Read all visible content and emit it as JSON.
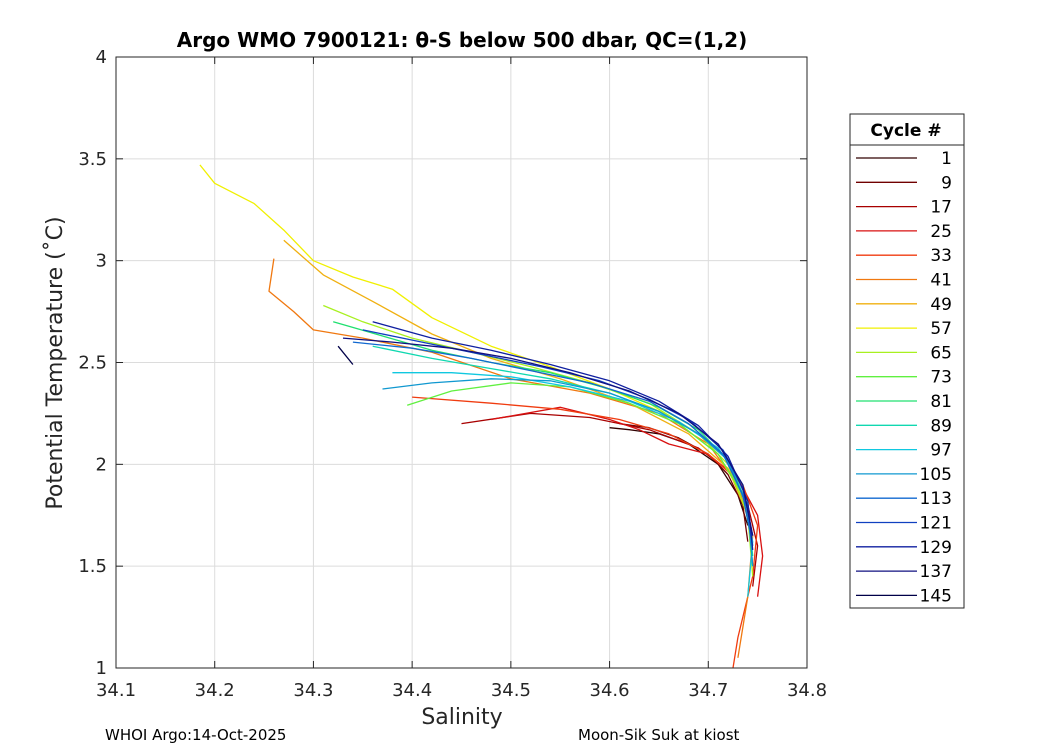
{
  "chart_data": {
    "type": "line",
    "title": "Argo WMO 7900121: θ-S below 500 dbar,  QC=(1,2)",
    "xlabel": "Salinity",
    "ylabel": "Potential Temperature (˚C)",
    "xlim": [
      34.1,
      34.8
    ],
    "ylim": [
      1,
      4
    ],
    "xticks": [
      34.1,
      34.2,
      34.3,
      34.4,
      34.5,
      34.6,
      34.7,
      34.8
    ],
    "xtick_labels": [
      "34.1",
      "34.2",
      "34.3",
      "34.4",
      "34.5",
      "34.6",
      "34.7",
      "34.8"
    ],
    "yticks": [
      1,
      1.5,
      2,
      2.5,
      3,
      3.5,
      4
    ],
    "ytick_labels": [
      "1",
      "1.5",
      "2",
      "2.5",
      "3",
      "3.5",
      "4"
    ],
    "grid": true,
    "legend": {
      "title": "Cycle #",
      "position": "right-outside",
      "entries": [
        {
          "label": "1",
          "color": "#300000"
        },
        {
          "label": "9",
          "color": "#700000"
        },
        {
          "label": "17",
          "color": "#a80000"
        },
        {
          "label": "25",
          "color": "#d81010"
        },
        {
          "label": "33",
          "color": "#f03c10"
        },
        {
          "label": "41",
          "color": "#f07810"
        },
        {
          "label": "49",
          "color": "#f0b010"
        },
        {
          "label": "57",
          "color": "#f0f000"
        },
        {
          "label": "65",
          "color": "#a8f020"
        },
        {
          "label": "73",
          "color": "#60f040"
        },
        {
          "label": "81",
          "color": "#20e070"
        },
        {
          "label": "89",
          "color": "#10d8b0"
        },
        {
          "label": "97",
          "color": "#10c8e0"
        },
        {
          "label": "105",
          "color": "#1098d0"
        },
        {
          "label": "113",
          "color": "#1068d0"
        },
        {
          "label": "121",
          "color": "#1040c0"
        },
        {
          "label": "129",
          "color": "#1020a0"
        },
        {
          "label": "137",
          "color": "#101080"
        },
        {
          "label": "145",
          "color": "#000048"
        }
      ]
    },
    "series": [
      {
        "name": "1",
        "color": "#300000",
        "points": [
          [
            34.6,
            2.18
          ],
          [
            34.62,
            2.17
          ],
          [
            34.65,
            2.15
          ],
          [
            34.68,
            2.1
          ],
          [
            34.71,
            2.0
          ],
          [
            34.73,
            1.85
          ],
          [
            34.74,
            1.7
          ]
        ]
      },
      {
        "name": "9",
        "color": "#700000",
        "points": [
          [
            34.61,
            2.2
          ],
          [
            34.64,
            2.18
          ],
          [
            34.67,
            2.13
          ],
          [
            34.7,
            2.05
          ],
          [
            34.72,
            1.95
          ],
          [
            34.735,
            1.8
          ],
          [
            34.74,
            1.62
          ]
        ]
      },
      {
        "name": "17",
        "color": "#a80000",
        "points": [
          [
            34.45,
            2.2
          ],
          [
            34.52,
            2.25
          ],
          [
            34.58,
            2.23
          ],
          [
            34.64,
            2.17
          ],
          [
            34.69,
            2.08
          ],
          [
            34.72,
            1.97
          ],
          [
            34.74,
            1.8
          ],
          [
            34.75,
            1.6
          ],
          [
            34.745,
            1.4
          ]
        ]
      },
      {
        "name": "25",
        "color": "#d81010",
        "points": [
          [
            34.48,
            2.22
          ],
          [
            34.55,
            2.28
          ],
          [
            34.6,
            2.22
          ],
          [
            34.63,
            2.17
          ],
          [
            34.66,
            2.1
          ],
          [
            34.7,
            2.05
          ],
          [
            34.73,
            1.93
          ],
          [
            34.75,
            1.75
          ],
          [
            34.755,
            1.55
          ],
          [
            34.75,
            1.35
          ]
        ]
      },
      {
        "name": "33",
        "color": "#f03c10",
        "points": [
          [
            34.4,
            2.33
          ],
          [
            34.48,
            2.3
          ],
          [
            34.55,
            2.27
          ],
          [
            34.61,
            2.22
          ],
          [
            34.66,
            2.15
          ],
          [
            34.7,
            2.05
          ],
          [
            34.735,
            1.9
          ],
          [
            34.75,
            1.7
          ],
          [
            34.745,
            1.45
          ],
          [
            34.73,
            1.15
          ],
          [
            34.725,
            1.0
          ]
        ]
      },
      {
        "name": "41",
        "color": "#f07810",
        "points": [
          [
            34.26,
            3.01
          ],
          [
            34.255,
            2.85
          ],
          [
            34.28,
            2.75
          ],
          [
            34.3,
            2.66
          ],
          [
            34.35,
            2.62
          ],
          [
            34.42,
            2.55
          ],
          [
            34.5,
            2.42
          ],
          [
            34.58,
            2.35
          ],
          [
            34.65,
            2.25
          ],
          [
            34.7,
            2.1
          ],
          [
            34.73,
            1.9
          ],
          [
            34.745,
            1.65
          ],
          [
            34.74,
            1.35
          ],
          [
            34.73,
            1.05
          ]
        ]
      },
      {
        "name": "49",
        "color": "#f0b010",
        "points": [
          [
            34.27,
            3.1
          ],
          [
            34.31,
            2.93
          ],
          [
            34.36,
            2.8
          ],
          [
            34.42,
            2.64
          ],
          [
            34.48,
            2.52
          ],
          [
            34.55,
            2.42
          ],
          [
            34.62,
            2.3
          ],
          [
            34.68,
            2.15
          ],
          [
            34.72,
            1.98
          ],
          [
            34.74,
            1.75
          ],
          [
            34.745,
            1.5
          ]
        ]
      },
      {
        "name": "57",
        "color": "#f0f000",
        "points": [
          [
            34.185,
            3.47
          ],
          [
            34.2,
            3.38
          ],
          [
            34.24,
            3.28
          ],
          [
            34.27,
            3.15
          ],
          [
            34.3,
            3.0
          ],
          [
            34.34,
            2.92
          ],
          [
            34.38,
            2.86
          ],
          [
            34.42,
            2.72
          ],
          [
            34.48,
            2.58
          ],
          [
            34.54,
            2.48
          ],
          [
            34.6,
            2.37
          ],
          [
            34.66,
            2.24
          ],
          [
            34.71,
            2.05
          ],
          [
            34.74,
            1.8
          ]
        ]
      },
      {
        "name": "65",
        "color": "#a8f020",
        "points": [
          [
            34.31,
            2.78
          ],
          [
            34.35,
            2.7
          ],
          [
            34.4,
            2.62
          ],
          [
            34.46,
            2.55
          ],
          [
            34.52,
            2.48
          ],
          [
            34.58,
            2.4
          ],
          [
            34.64,
            2.3
          ],
          [
            34.69,
            2.15
          ],
          [
            34.72,
            2.0
          ],
          [
            34.74,
            1.75
          ],
          [
            34.745,
            1.45
          ]
        ]
      },
      {
        "name": "73",
        "color": "#60f040",
        "points": [
          [
            34.395,
            2.29
          ],
          [
            34.44,
            2.36
          ],
          [
            34.5,
            2.4
          ],
          [
            34.56,
            2.38
          ],
          [
            34.62,
            2.3
          ],
          [
            34.67,
            2.2
          ],
          [
            34.71,
            2.05
          ],
          [
            34.735,
            1.85
          ],
          [
            34.745,
            1.6
          ]
        ]
      },
      {
        "name": "81",
        "color": "#20e070",
        "points": [
          [
            34.32,
            2.7
          ],
          [
            34.37,
            2.63
          ],
          [
            34.42,
            2.56
          ],
          [
            34.48,
            2.5
          ],
          [
            34.54,
            2.45
          ],
          [
            34.6,
            2.37
          ],
          [
            34.65,
            2.28
          ],
          [
            34.69,
            2.17
          ],
          [
            34.72,
            2.02
          ],
          [
            34.74,
            1.8
          ],
          [
            34.745,
            1.55
          ]
        ]
      },
      {
        "name": "89",
        "color": "#10d8b0",
        "points": [
          [
            34.36,
            2.58
          ],
          [
            34.42,
            2.52
          ],
          [
            34.48,
            2.47
          ],
          [
            34.54,
            2.42
          ],
          [
            34.6,
            2.35
          ],
          [
            34.65,
            2.26
          ],
          [
            34.69,
            2.15
          ],
          [
            34.72,
            2.02
          ],
          [
            34.74,
            1.8
          ],
          [
            34.745,
            1.5
          ]
        ]
      },
      {
        "name": "97",
        "color": "#10c8e0",
        "points": [
          [
            34.38,
            2.45
          ],
          [
            34.44,
            2.45
          ],
          [
            34.5,
            2.43
          ],
          [
            34.56,
            2.38
          ],
          [
            34.62,
            2.31
          ],
          [
            34.67,
            2.21
          ],
          [
            34.71,
            2.08
          ],
          [
            34.735,
            1.9
          ],
          [
            34.745,
            1.62
          ],
          [
            34.74,
            1.35
          ]
        ]
      },
      {
        "name": "105",
        "color": "#1098d0",
        "points": [
          [
            34.37,
            2.37
          ],
          [
            34.42,
            2.4
          ],
          [
            34.48,
            2.42
          ],
          [
            34.54,
            2.41
          ],
          [
            34.6,
            2.35
          ],
          [
            34.65,
            2.26
          ],
          [
            34.69,
            2.15
          ],
          [
            34.72,
            2.02
          ],
          [
            34.74,
            1.78
          ],
          [
            34.745,
            1.5
          ]
        ]
      },
      {
        "name": "113",
        "color": "#1068d0",
        "points": [
          [
            34.34,
            2.6
          ],
          [
            34.4,
            2.57
          ],
          [
            34.46,
            2.52
          ],
          [
            34.52,
            2.46
          ],
          [
            34.58,
            2.4
          ],
          [
            34.64,
            2.31
          ],
          [
            34.68,
            2.2
          ],
          [
            34.715,
            2.05
          ],
          [
            34.735,
            1.85
          ],
          [
            34.745,
            1.6
          ]
        ]
      },
      {
        "name": "121",
        "color": "#1040c0",
        "points": [
          [
            34.35,
            2.66
          ],
          [
            34.41,
            2.6
          ],
          [
            34.47,
            2.54
          ],
          [
            34.53,
            2.48
          ],
          [
            34.59,
            2.41
          ],
          [
            34.64,
            2.32
          ],
          [
            34.68,
            2.22
          ],
          [
            34.715,
            2.07
          ],
          [
            34.735,
            1.88
          ],
          [
            34.745,
            1.65
          ]
        ]
      },
      {
        "name": "129",
        "color": "#1020a0",
        "points": [
          [
            34.36,
            2.7
          ],
          [
            34.42,
            2.62
          ],
          [
            34.48,
            2.56
          ],
          [
            34.54,
            2.49
          ],
          [
            34.6,
            2.41
          ],
          [
            34.65,
            2.31
          ],
          [
            34.69,
            2.19
          ],
          [
            34.72,
            2.04
          ],
          [
            34.74,
            1.82
          ],
          [
            34.745,
            1.58
          ]
        ]
      },
      {
        "name": "137",
        "color": "#101080",
        "points": [
          [
            34.33,
            2.62
          ],
          [
            34.38,
            2.6
          ],
          [
            34.44,
            2.57
          ],
          [
            34.5,
            2.52
          ],
          [
            34.56,
            2.45
          ],
          [
            34.62,
            2.36
          ],
          [
            34.67,
            2.25
          ],
          [
            34.71,
            2.1
          ],
          [
            34.735,
            1.9
          ],
          [
            34.745,
            1.65
          ]
        ]
      },
      {
        "name": "145",
        "color": "#000048",
        "points": [
          [
            34.325,
            2.58
          ],
          [
            34.34,
            2.49
          ]
        ]
      }
    ]
  },
  "footer": {
    "left": "WHOI Argo:14-Oct-2025",
    "right": "Moon-Sik Suk at kiost"
  }
}
